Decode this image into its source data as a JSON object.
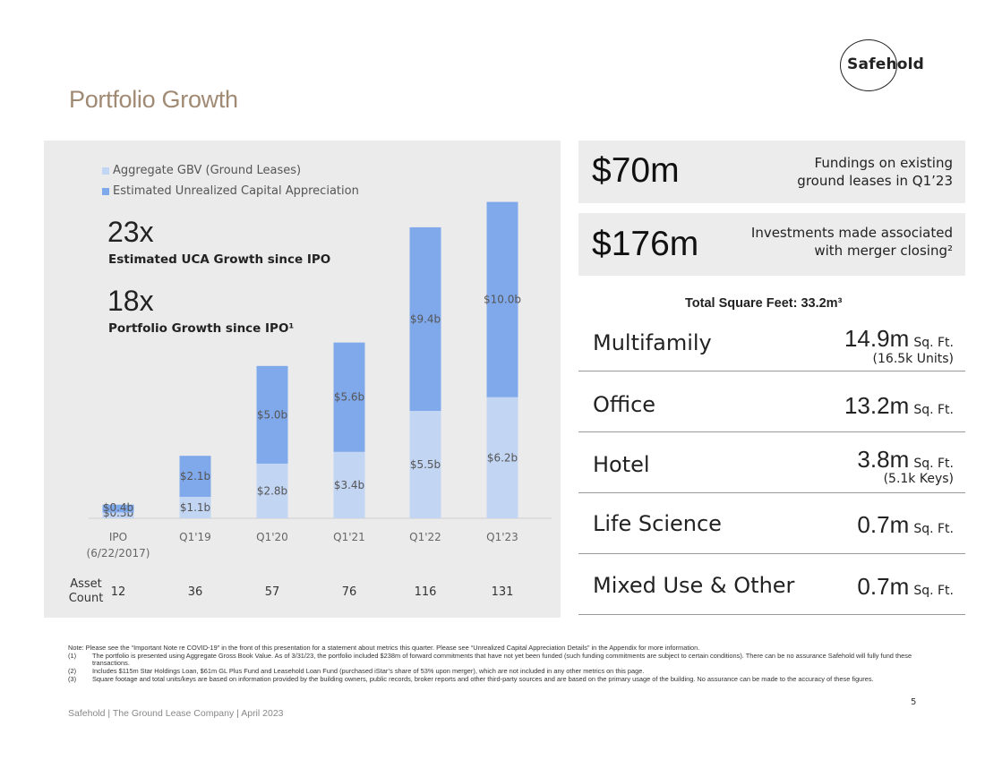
{
  "logo": {
    "text": "Safehold"
  },
  "title": "Portfolio Growth",
  "legend": [
    {
      "label": "Aggregate GBV (Ground Leases)",
      "color": "#c2d5f3"
    },
    {
      "label": "Estimated Unrealized Capital Appreciation",
      "color": "#80a9ec"
    }
  ],
  "highlights": [
    {
      "value": "23x",
      "caption": "Estimated UCA Growth since IPO"
    },
    {
      "value": "18x",
      "caption": "Portfolio Growth since IPO¹"
    }
  ],
  "chart_data": {
    "type": "bar",
    "stacked": true,
    "categories": [
      "IPO\n(6/22/2017)",
      "Q1'19",
      "Q1'20",
      "Q1'21",
      "Q1'22",
      "Q1'23"
    ],
    "series": [
      {
        "name": "Aggregate GBV (Ground Leases)",
        "values": [
          0.3,
          1.1,
          2.8,
          3.4,
          5.5,
          6.2
        ],
        "labels": [
          "$0.3b",
          "$1.1b",
          "$2.8b",
          "$3.4b",
          "$5.5b",
          "$6.2b"
        ],
        "color": "#c2d5f3"
      },
      {
        "name": "Estimated Unrealized Capital Appreciation",
        "values": [
          0.4,
          2.1,
          5.0,
          5.6,
          9.4,
          10.0
        ],
        "labels": [
          "$0.4b",
          "$2.1b",
          "$5.0b",
          "$5.6b",
          "$9.4b",
          "$10.0b"
        ],
        "color": "#80a9ec"
      }
    ],
    "ylim": [
      0,
      16.5
    ],
    "grid": false
  },
  "asset_count": {
    "label": "Asset\nCount",
    "values": [
      "12",
      "36",
      "57",
      "76",
      "116",
      "131"
    ]
  },
  "boxes": [
    {
      "value": "$70m",
      "line1": "Fundings on existing",
      "line2": "ground leases in Q1’23"
    },
    {
      "value": "$176m",
      "line1": "Investments made associated",
      "line2": "with merger closing²"
    }
  ],
  "sqft_total": "Total Square Feet: 33.2m³",
  "property_types": [
    {
      "label": "Multifamily",
      "value": "14.9m",
      "unit": "Sq. Ft.",
      "sub": "(16.5k Units)"
    },
    {
      "label": "Office",
      "value": "13.2m",
      "unit": "Sq. Ft.",
      "sub": ""
    },
    {
      "label": "Hotel",
      "value": "3.8m",
      "unit": "Sq. Ft.",
      "sub": "(5.1k Keys)"
    },
    {
      "label": "Life Science",
      "value": "0.7m",
      "unit": "Sq. Ft.",
      "sub": ""
    },
    {
      "label": "Mixed Use & Other",
      "value": "0.7m",
      "unit": "Sq. Ft.",
      "sub": ""
    }
  ],
  "footnotes": [
    {
      "mark": "Note:",
      "text": "Please see the “Important Note re COVID-19” in the front of this presentation for a statement about metrics this quarter. Please see “Unrealized Capital Appreciation Details” in the Appendix for more information."
    },
    {
      "mark": "(1)",
      "text": "The portfolio is presented using Aggregate Gross Book Value. As of 3/31/23, the portfolio included $238m of forward commitments that have not yet been funded (such funding commitments are subject to certain conditions). There can be no assurance Safehold will fully fund these transactions."
    },
    {
      "mark": "(2)",
      "text": "Includes $115m Star Holdings Loan, $61m GL Plus Fund and Leasehold Loan Fund (purchased iStar’s share of 53% upon merger), which are not included in any other metrics on this page."
    },
    {
      "mark": "(3)",
      "text": "Square footage and total units/keys are based on information provided by the building owners, public records, broker reports and other third-party sources and are based on the primary usage of the building. No assurance can be made to the accuracy of these figures."
    }
  ],
  "footer": "Safehold | The Ground Lease Company | April 2023",
  "page_number": "5"
}
